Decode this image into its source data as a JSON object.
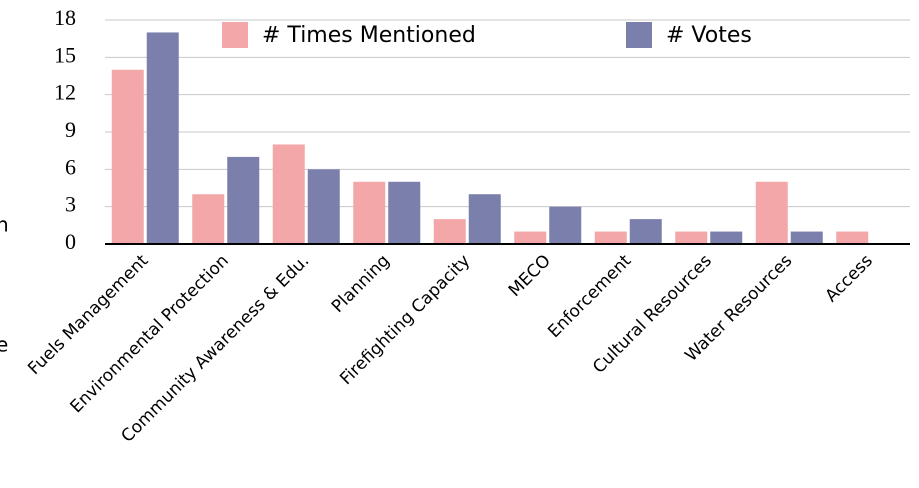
{
  "chart_data": {
    "type": "bar",
    "categories": [
      "Fuels Management",
      "Environmental Protection",
      "Community Awareness & Edu.",
      "Planning",
      "Firefighting Capacity",
      "MECO",
      "Enforcement",
      "Cultural Resources",
      "Water Resources",
      "Access"
    ],
    "series": [
      {
        "name": "# Times Mentioned",
        "color": "#f4a7a9",
        "values": [
          14,
          4,
          8,
          5,
          2,
          1,
          1,
          1,
          5,
          1
        ]
      },
      {
        "name": "# Votes",
        "color": "#7b7fac",
        "values": [
          17,
          7,
          6,
          5,
          4,
          3,
          2,
          1,
          1,
          null
        ]
      }
    ],
    "ylim": [
      0,
      18
    ],
    "yticks": [
      0,
      3,
      6,
      9,
      12,
      15,
      18
    ],
    "grid": true,
    "annotations": [
      "n",
      "e"
    ]
  }
}
